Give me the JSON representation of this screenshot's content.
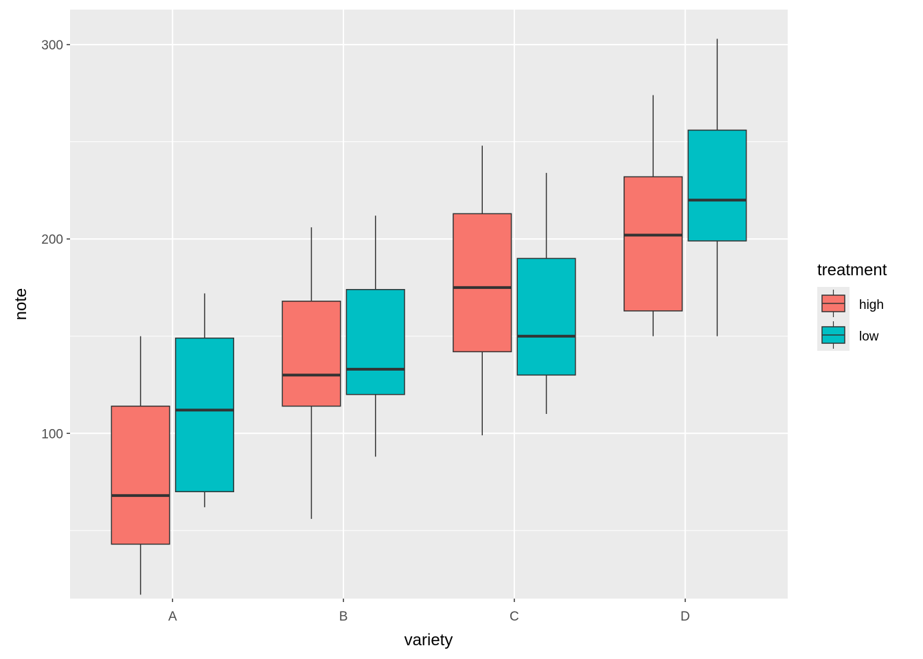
{
  "chart_data": {
    "type": "boxplot",
    "xlabel": "variety",
    "ylabel": "note",
    "categories": [
      "A",
      "B",
      "C",
      "D"
    ],
    "y_ticks": [
      100,
      200,
      300
    ],
    "y_tick_labels": [
      "100",
      "200",
      "300"
    ],
    "ylim": [
      15,
      318
    ],
    "grid": true,
    "legend": {
      "title": "treatment",
      "placement": "right",
      "entries": [
        "high",
        "low"
      ]
    },
    "series": [
      {
        "name": "high",
        "color": "#F8766D",
        "boxes": [
          {
            "category": "A",
            "min": 17,
            "q1": 43,
            "median": 68,
            "q3": 114,
            "max": 150
          },
          {
            "category": "B",
            "min": 56,
            "q1": 114,
            "median": 130,
            "q3": 168,
            "max": 206
          },
          {
            "category": "C",
            "min": 99,
            "q1": 142,
            "median": 175,
            "q3": 213,
            "max": 248
          },
          {
            "category": "D",
            "min": 150,
            "q1": 163,
            "median": 202,
            "q3": 232,
            "max": 274
          }
        ]
      },
      {
        "name": "low",
        "color": "#00BFC4",
        "boxes": [
          {
            "category": "A",
            "min": 62,
            "q1": 70,
            "median": 112,
            "q3": 149,
            "max": 172
          },
          {
            "category": "B",
            "min": 88,
            "q1": 120,
            "median": 133,
            "q3": 174,
            "max": 212
          },
          {
            "category": "C",
            "min": 110,
            "q1": 130,
            "median": 150,
            "q3": 190,
            "max": 234
          },
          {
            "category": "D",
            "min": 150,
            "q1": 199,
            "median": 220,
            "q3": 256,
            "max": 303
          }
        ]
      }
    ]
  }
}
